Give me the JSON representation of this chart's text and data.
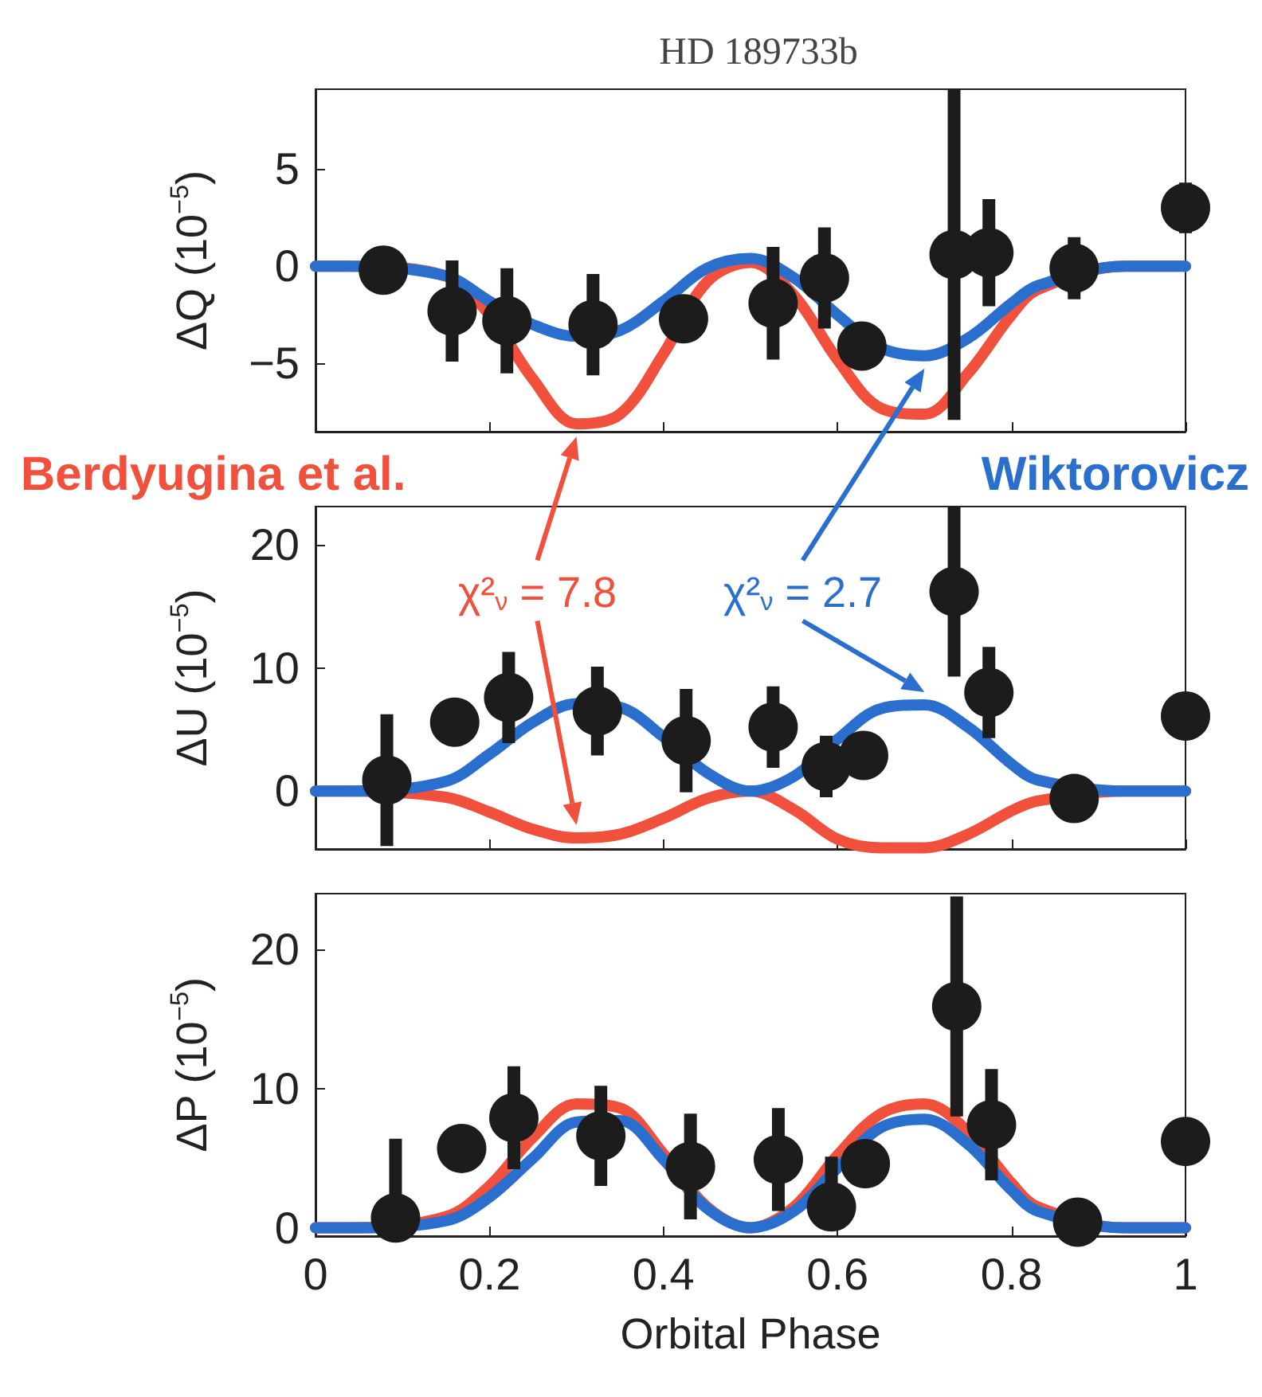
{
  "chart_data": [
    {
      "type": "scatter",
      "title": "HD 189733b",
      "ylabel": "ΔQ (10$^{−5}$)",
      "xlim": [
        0,
        1
      ],
      "xticks": [
        0,
        0.2,
        0.4,
        0.6,
        0.8,
        1
      ],
      "ylim": [
        -8.5,
        9.1
      ],
      "yticks": [
        {
          "value": -5,
          "label": "−5"
        },
        0,
        5
      ],
      "tick_labels": "y",
      "grid": false,
      "line_style": "solid",
      "series": [
        {
          "type": "line",
          "color": "#f0503c",
          "x": [
            0,
            0.04,
            0.15,
            0.2,
            0.25,
            0.3,
            0.35,
            0.4,
            0.45,
            0.5,
            0.55,
            0.6,
            0.65,
            0.7,
            0.75,
            0.8,
            0.83,
            0.93,
            1
          ],
          "values": [
            0,
            0,
            -0.5,
            -2.5,
            -5.8,
            -8.1,
            -7.6,
            -4.5,
            -0.8,
            0.2,
            -1.5,
            -4.8,
            -7.3,
            -7.6,
            -5.5,
            -2.5,
            -1.2,
            0,
            0
          ]
        },
        {
          "type": "line",
          "color": "#2b6fce",
          "x": [
            0,
            0.04,
            0.15,
            0.2,
            0.25,
            0.3,
            0.35,
            0.4,
            0.45,
            0.5,
            0.55,
            0.6,
            0.65,
            0.7,
            0.75,
            0.8,
            0.83,
            0.93,
            1
          ],
          "values": [
            0,
            0,
            -0.5,
            -1.8,
            -3.0,
            -3.6,
            -3.3,
            -1.8,
            -0.1,
            0.4,
            -0.6,
            -2.5,
            -4.2,
            -4.6,
            -3.7,
            -1.9,
            -1.0,
            0,
            0
          ]
        },
        {
          "type": "scatter",
          "color": "#1c1c1c",
          "marker": "circle",
          "x": [
            0.078,
            0.157,
            0.22,
            0.319,
            0.423,
            0.526,
            0.585,
            0.628,
            0.734,
            0.774,
            0.872,
            1.0
          ],
          "values": [
            -0.2,
            -2.3,
            -2.8,
            -3.0,
            -2.7,
            -1.9,
            -0.6,
            -4.1,
            0.6,
            0.7,
            -0.1,
            3.0
          ],
          "errors": [
            null,
            2.6,
            2.7,
            2.6,
            null,
            2.9,
            2.6,
            null,
            [
              -7.9,
              9.1
            ],
            2.75,
            1.6,
            1.3
          ]
        }
      ]
    },
    {
      "type": "scatter",
      "ylabel": "ΔU (10$^{−5}$)",
      "xlim": [
        0,
        1
      ],
      "xticks": [
        0,
        0.2,
        0.4,
        0.6,
        0.8,
        1
      ],
      "ylim": [
        -4.7,
        23.1
      ],
      "yticks": [
        0,
        10,
        20
      ],
      "tick_labels": "y",
      "grid": false,
      "line_style": "solid",
      "legend": "top",
      "annotations": [
        "χ²$_{ν}$ = 7.8",
        "χ²$_{ν}$ = 2.7"
      ],
      "series": [
        {
          "type": "line",
          "name": "Berdyugina et al.",
          "color": "#f0503c",
          "x": [
            0,
            0.04,
            0.15,
            0.2,
            0.25,
            0.3,
            0.35,
            0.4,
            0.45,
            0.5,
            0.55,
            0.6,
            0.65,
            0.7,
            0.75,
            0.8,
            0.83,
            0.93,
            1
          ],
          "values": [
            0,
            0,
            -0.5,
            -1.7,
            -3.1,
            -3.8,
            -3.5,
            -2.2,
            -0.6,
            0,
            -1.5,
            -3.9,
            -4.6,
            -4.6,
            -3.5,
            -1.6,
            -0.8,
            0,
            0
          ]
        },
        {
          "type": "line",
          "name": "Wiktorovicz",
          "color": "#2b6fce",
          "x": [
            0,
            0.04,
            0.15,
            0.2,
            0.25,
            0.3,
            0.35,
            0.4,
            0.45,
            0.5,
            0.55,
            0.6,
            0.65,
            0.7,
            0.75,
            0.8,
            0.83,
            0.93,
            1
          ],
          "values": [
            0,
            0,
            0.8,
            3.0,
            5.6,
            7.1,
            6.8,
            4.4,
            1.5,
            0,
            1.2,
            4.2,
            6.7,
            7.0,
            5.2,
            2.2,
            0.9,
            0,
            0
          ]
        },
        {
          "type": "scatter",
          "color": "#1c1c1c",
          "marker": "circle",
          "x": [
            0.082,
            0.16,
            0.222,
            0.324,
            0.426,
            0.526,
            0.587,
            0.63,
            0.734,
            0.774,
            0.872,
            1.0
          ],
          "values": [
            0.9,
            5.6,
            7.6,
            6.5,
            4.1,
            5.2,
            2.0,
            2.9,
            16.2,
            8.0,
            -0.6,
            6.1
          ],
          "errors": [
            5.35,
            null,
            3.7,
            3.6,
            4.2,
            3.3,
            2.5,
            null,
            6.9,
            3.7,
            null,
            null
          ]
        }
      ]
    },
    {
      "type": "scatter",
      "xlabel": "Orbital Phase",
      "ylabel": "ΔP (10$^{−5}$)",
      "xlim": [
        0,
        1
      ],
      "xticks": [
        0,
        0.2,
        0.4,
        0.6,
        0.8,
        1
      ],
      "ylim": [
        -0.6,
        24
      ],
      "yticks": [
        0,
        10,
        20
      ],
      "grid": false,
      "line_style": "solid",
      "series": [
        {
          "type": "line",
          "color": "#f0503c",
          "x": [
            0,
            0.04,
            0.15,
            0.2,
            0.25,
            0.3,
            0.35,
            0.4,
            0.45,
            0.5,
            0.55,
            0.6,
            0.65,
            0.7,
            0.75,
            0.8,
            0.83,
            0.93,
            1
          ],
          "values": [
            0,
            0,
            0.8,
            3.0,
            6.5,
            8.9,
            8.6,
            5.3,
            1.5,
            0,
            1.5,
            5.2,
            8.2,
            8.9,
            6.9,
            3.2,
            1.5,
            0,
            0
          ]
        },
        {
          "type": "line",
          "color": "#2b6fce",
          "x": [
            0,
            0.04,
            0.15,
            0.2,
            0.25,
            0.3,
            0.35,
            0.4,
            0.45,
            0.5,
            0.55,
            0.6,
            0.65,
            0.7,
            0.75,
            0.8,
            0.83,
            0.93,
            1
          ],
          "values": [
            0,
            0,
            0.5,
            2.2,
            5.0,
            7.6,
            7.7,
            4.9,
            1.4,
            0,
            1.2,
            4.3,
            7.2,
            7.8,
            6.0,
            2.7,
            1.2,
            0,
            0
          ]
        },
        {
          "type": "scatter",
          "color": "#1c1c1c",
          "marker": "circle",
          "x": [
            0.092,
            0.168,
            0.228,
            0.328,
            0.431,
            0.532,
            0.593,
            0.632,
            0.737,
            0.777,
            0.876,
            1.0
          ],
          "values": [
            0.7,
            5.7,
            7.9,
            6.6,
            4.4,
            4.9,
            1.5,
            4.6,
            15.9,
            7.4,
            0.4,
            6.2
          ],
          "errors": [
            [
              0.7,
              6.4
            ],
            null,
            3.7,
            3.6,
            3.8,
            3.7,
            [
              1.5,
              5.1
            ],
            null,
            7.9,
            4.0,
            null,
            null
          ]
        }
      ]
    }
  ]
}
